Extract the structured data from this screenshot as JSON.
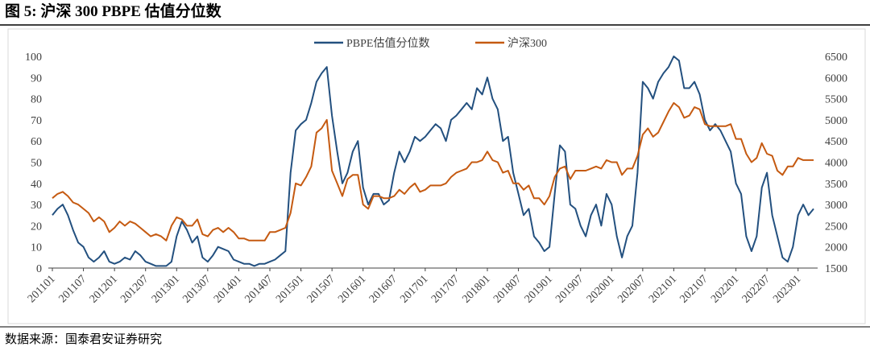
{
  "chart_data": {
    "type": "line",
    "title": "图 5:  沪深 300 PBPE 估值分位数",
    "source": "数据来源：国泰君安证券研究",
    "categories": [
      "201101",
      null,
      null,
      null,
      null,
      null,
      "201107",
      null,
      null,
      null,
      null,
      null,
      "201201",
      null,
      null,
      null,
      null,
      null,
      "201207",
      null,
      null,
      null,
      null,
      null,
      "201301",
      null,
      null,
      null,
      null,
      null,
      "201307",
      null,
      null,
      null,
      null,
      null,
      "201401",
      null,
      null,
      null,
      null,
      null,
      "201407",
      null,
      null,
      null,
      null,
      null,
      "201501",
      null,
      null,
      null,
      null,
      null,
      "201507",
      null,
      null,
      null,
      null,
      null,
      "201601",
      null,
      null,
      null,
      null,
      null,
      "201607",
      null,
      null,
      null,
      null,
      null,
      "201701",
      null,
      null,
      null,
      null,
      null,
      "201707",
      null,
      null,
      null,
      null,
      null,
      "201801",
      null,
      null,
      null,
      null,
      null,
      "201807",
      null,
      null,
      null,
      null,
      null,
      "201901",
      null,
      null,
      null,
      null,
      null,
      "201907",
      null,
      null,
      null,
      null,
      null,
      "202001",
      null,
      null,
      null,
      null,
      null,
      "202007",
      null,
      null,
      null,
      null,
      null,
      "202101",
      null,
      null,
      null,
      null,
      null,
      "202107",
      null,
      null,
      null,
      null,
      null,
      "202201",
      null,
      null,
      null,
      null,
      null,
      "202207",
      null,
      null,
      null,
      null,
      null,
      "202301",
      null,
      null,
      null
    ],
    "series": [
      {
        "name": "PBPE估值分位数",
        "color": "#23507f",
        "axis": "y",
        "values": [
          25,
          28,
          30,
          25,
          18,
          12,
          10,
          5,
          3,
          5,
          8,
          3,
          2,
          3,
          5,
          4,
          8,
          6,
          3,
          2,
          1,
          1,
          1,
          3,
          15,
          22,
          18,
          12,
          15,
          5,
          3,
          6,
          10,
          9,
          8,
          4,
          3,
          2,
          2,
          1,
          2,
          2,
          3,
          4,
          6,
          8,
          45,
          65,
          68,
          70,
          78,
          88,
          92,
          95,
          72,
          55,
          40,
          45,
          55,
          60,
          38,
          30,
          35,
          35,
          30,
          32,
          45,
          55,
          50,
          55,
          62,
          60,
          62,
          65,
          68,
          66,
          60,
          70,
          72,
          75,
          78,
          75,
          85,
          82,
          90,
          80,
          75,
          60,
          62,
          45,
          35,
          25,
          28,
          15,
          12,
          8,
          10,
          35,
          58,
          55,
          30,
          28,
          20,
          15,
          25,
          30,
          20,
          35,
          30,
          15,
          5,
          15,
          20,
          45,
          88,
          85,
          80,
          88,
          92,
          95,
          100,
          98,
          85,
          85,
          88,
          82,
          70,
          65,
          68,
          65,
          60,
          55,
          40,
          35,
          15,
          8,
          15,
          38,
          45,
          25,
          15,
          5,
          3,
          10,
          25,
          30,
          25,
          28
        ]
      },
      {
        "name": "沪深300",
        "color": "#c55a11",
        "axis": "y2",
        "values": [
          3150,
          3250,
          3300,
          3200,
          3050,
          3000,
          2900,
          2800,
          2600,
          2700,
          2600,
          2350,
          2450,
          2600,
          2500,
          2600,
          2550,
          2450,
          2350,
          2250,
          2300,
          2250,
          2150,
          2500,
          2700,
          2650,
          2500,
          2500,
          2650,
          2300,
          2250,
          2400,
          2450,
          2350,
          2450,
          2350,
          2200,
          2200,
          2150,
          2150,
          2150,
          2150,
          2350,
          2350,
          2400,
          2450,
          2800,
          3500,
          3450,
          3650,
          3900,
          4700,
          4800,
          5000,
          3800,
          3500,
          3200,
          3600,
          3700,
          3700,
          3000,
          2900,
          3200,
          3200,
          3150,
          3150,
          3200,
          3350,
          3250,
          3400,
          3500,
          3300,
          3350,
          3450,
          3450,
          3450,
          3500,
          3650,
          3750,
          3800,
          3850,
          4000,
          4000,
          4050,
          4250,
          4050,
          4000,
          3750,
          3800,
          3500,
          3500,
          3350,
          3450,
          3150,
          3150,
          3000,
          3200,
          3650,
          3850,
          3900,
          3600,
          3800,
          3800,
          3800,
          3850,
          3900,
          3850,
          4050,
          4000,
          4000,
          3700,
          3850,
          3850,
          4150,
          4650,
          4800,
          4600,
          4700,
          4950,
          5200,
          5400,
          5300,
          5050,
          5100,
          5300,
          5250,
          4900,
          4850,
          4850,
          4850,
          4850,
          4900,
          4550,
          4550,
          4200,
          4000,
          4100,
          4450,
          4200,
          4150,
          3800,
          3700,
          3900,
          3900,
          4100,
          4050,
          4050,
          4050
        ]
      }
    ],
    "ylim": [
      0,
      100
    ],
    "yticks": [
      0,
      10,
      20,
      30,
      40,
      50,
      60,
      70,
      80,
      90,
      100
    ],
    "y2lim": [
      1500,
      6500
    ],
    "y2ticks": [
      1500,
      2000,
      2500,
      3000,
      3500,
      4000,
      4500,
      5000,
      5500,
      6000,
      6500
    ],
    "legend": "top"
  }
}
